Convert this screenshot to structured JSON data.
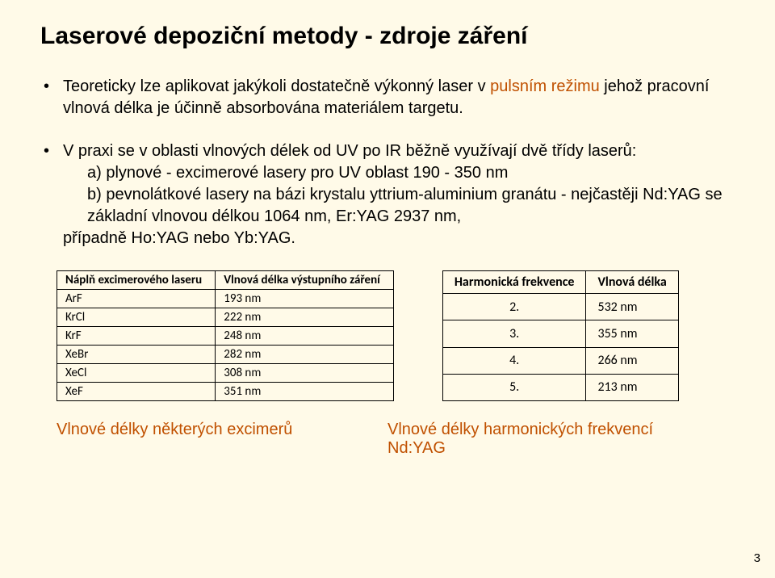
{
  "title": "Laserové depoziční metody - zdroje záření",
  "paragraph1": {
    "pre": "Teoreticky lze aplikovat jakýkoli dostatečně výkonný laser v ",
    "accent": "pulsním režimu",
    "post": " jehož pracovní vlnová délka je účinně absorbována materiálem targetu."
  },
  "paragraph2": {
    "lead": "V praxi se v oblasti vlnových délek od UV po IR běžně využívají dvě třídy laserů:",
    "item_a": "a) plynové - excimerové lasery pro UV oblast 190 - 350 nm",
    "item_b": "b) pevnolátkové lasery na bázi krystalu yttrium-aluminium granátu - nejčastěji Nd:YAG se základní vlnovou délkou 1064 nm, Er:YAG 2937 nm,",
    "item_b_tail": "případně Ho:YAG nebo Yb:YAG."
  },
  "excimer_table": {
    "headers": [
      "Náplň excimerového laseru",
      "Vlnová délka výstupního záření"
    ],
    "rows": [
      [
        "ArF",
        "193 nm"
      ],
      [
        "KrCl",
        "222 nm"
      ],
      [
        "KrF",
        "248 nm"
      ],
      [
        "XeBr",
        "282 nm"
      ],
      [
        "XeCl",
        "308 nm"
      ],
      [
        "XeF",
        "351 nm"
      ]
    ]
  },
  "harmonic_table": {
    "headers": [
      "Harmonická frekvence",
      "Vlnová délka"
    ],
    "rows": [
      [
        "2.",
        "532 nm"
      ],
      [
        "3.",
        "355 nm"
      ],
      [
        "4.",
        "266 nm"
      ],
      [
        "5.",
        "213 nm"
      ]
    ]
  },
  "caption_left": "Vlnové délky některých excimerů",
  "caption_right": "Vlnové délky harmonických frekvencí Nd:YAG",
  "page_num": "3"
}
